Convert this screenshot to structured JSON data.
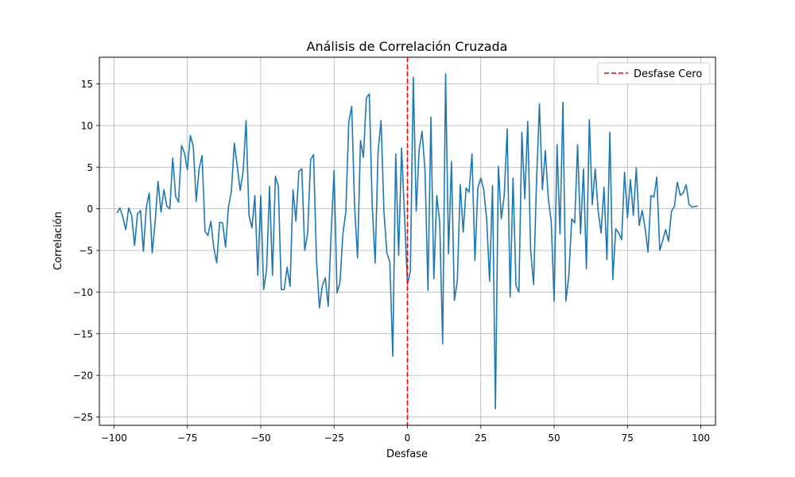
{
  "chart_data": {
    "type": "line",
    "title": "Análisis de Correlación Cruzada",
    "xlabel": "Desfase",
    "ylabel": "Correlación",
    "xlim": [
      -105,
      105
    ],
    "ylim": [
      -26,
      18.2
    ],
    "xticks": [
      -100,
      -75,
      -50,
      -25,
      0,
      25,
      50,
      75,
      100
    ],
    "yticks": [
      -25,
      -20,
      -15,
      -10,
      -5,
      0,
      5,
      10,
      15
    ],
    "grid": true,
    "legend_position": "top-right",
    "series": [
      {
        "name": "",
        "color": "#1f77b4",
        "x_start": -99,
        "x_step": 1,
        "values": [
          -0.5,
          0.1,
          -1.0,
          -2.5,
          0.1,
          -0.8,
          -4.4,
          -0.6,
          -0.2,
          -5.1,
          0.2,
          1.9,
          -5.3,
          -1.6,
          3.3,
          -0.4,
          2.3,
          0.3,
          -0.0,
          6.1,
          1.5,
          0.8,
          7.6,
          6.7,
          4.7,
          8.8,
          7.5,
          0.9,
          4.8,
          6.4,
          -2.7,
          -3.2,
          -1.5,
          -4.7,
          -6.5,
          -1.6,
          -1.7,
          -4.6,
          0.2,
          2.1,
          7.9,
          5.1,
          2.2,
          4.5,
          10.6,
          -0.8,
          -2.3,
          1.6,
          -8.0,
          1.6,
          -9.7,
          -7.3,
          2.7,
          -8.0,
          3.9,
          2.7,
          -9.7,
          -9.7,
          -7.0,
          -9.3,
          2.3,
          -1.5,
          4.5,
          4.8,
          -5.0,
          -2.9,
          5.9,
          6.5,
          -6.2,
          -11.9,
          -9.2,
          -8.3,
          -11.7,
          -2.9,
          4.6,
          -10.1,
          -8.9,
          -3.0,
          -0.4,
          10.4,
          12.3,
          0.2,
          -5.9,
          8.2,
          6.2,
          13.3,
          13.8,
          0.3,
          -6.5,
          6.9,
          10.6,
          -0.4,
          -5.3,
          -6.4,
          -17.7,
          6.6,
          -5.6,
          7.3,
          -0.7,
          -9.1,
          -7.5,
          15.8,
          -0.3,
          7.1,
          9.3,
          4.5,
          -9.8,
          11.0,
          -8.4,
          1.6,
          -1.6,
          -16.2,
          16.2,
          -5.4,
          5.7,
          -11.0,
          -8.7,
          2.9,
          -2.8,
          2.5,
          2.0,
          6.6,
          -6.2,
          2.5,
          3.7,
          2.3,
          -1.2,
          -8.7,
          2.8,
          -24.0,
          5.1,
          -1.2,
          1.6,
          9.6,
          -10.6,
          3.7,
          -9.2,
          -10.0,
          9.2,
          1.2,
          10.5,
          -5.0,
          -9.1,
          3.3,
          12.6,
          2.3,
          7.0,
          1.3,
          -1.5,
          -11.1,
          7.7,
          -3.0,
          12.8,
          -11.1,
          -8.1,
          -1.2,
          -1.7,
          7.7,
          -3.0,
          4.8,
          -7.2,
          10.7,
          0.5,
          4.8,
          -0.2,
          -2.9,
          2.6,
          -6.1,
          9.2,
          -8.5,
          -2.4,
          -2.9,
          -3.7,
          4.4,
          -1.1,
          3.5,
          -0.8,
          4.9,
          -2.0,
          -0.2,
          -2.3,
          -5.2,
          1.6,
          1.4,
          3.8,
          -5.0,
          -3.8,
          -2.5,
          -3.9,
          -0.3,
          0.3,
          3.2,
          1.6,
          1.9,
          2.9,
          0.5,
          0.2,
          0.3,
          0.3
        ]
      }
    ],
    "reference_line": {
      "x": 0,
      "label": "Desfase Cero",
      "color": "#ff0000",
      "style": "dashed"
    }
  }
}
